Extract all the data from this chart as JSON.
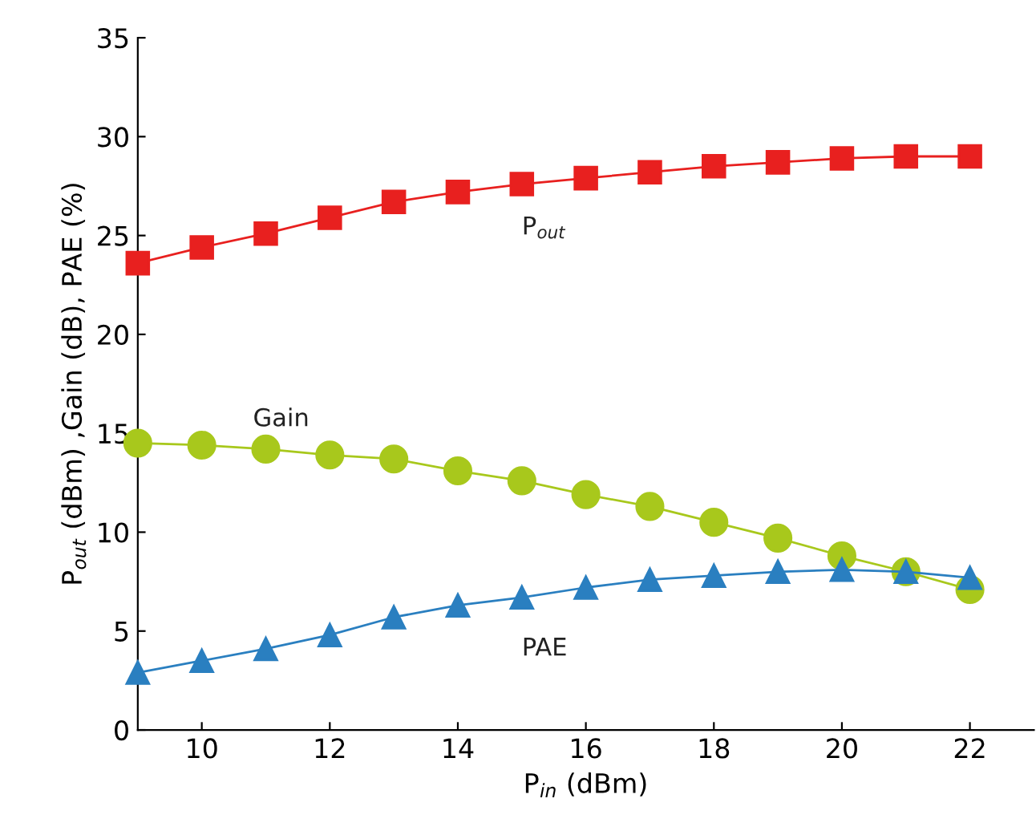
{
  "chart_data": {
    "type": "line",
    "xlabel": "P$_{in}$ (dBm)",
    "ylabel": "P$_{out}$ (dBm) ,Gain (dB), PAE (%)",
    "x": [
      9,
      10,
      11,
      12,
      13,
      14,
      15,
      16,
      17,
      18,
      19,
      20,
      21,
      22
    ],
    "series": [
      {
        "name": "P$_{out}$",
        "color": "#e8201f",
        "marker": "square",
        "values": [
          23.6,
          24.4,
          25.1,
          25.9,
          26.7,
          27.2,
          27.6,
          27.9,
          28.2,
          28.5,
          28.7,
          28.9,
          29.0,
          29.0
        ]
      },
      {
        "name": "Gain",
        "color": "#a8c81c",
        "marker": "circle",
        "values": [
          14.5,
          14.4,
          14.2,
          13.9,
          13.7,
          13.1,
          12.6,
          11.9,
          11.3,
          10.5,
          9.7,
          8.8,
          8.0,
          7.1
        ]
      },
      {
        "name": "PAE",
        "color": "#2a7fc0",
        "marker": "triangle",
        "values": [
          2.9,
          3.5,
          4.1,
          4.8,
          5.7,
          6.3,
          6.7,
          7.2,
          7.6,
          7.8,
          8.0,
          8.1,
          8.0,
          7.7
        ]
      }
    ],
    "xlim": [
      9,
      23
    ],
    "xticks": [
      10,
      12,
      14,
      16,
      18,
      20,
      22
    ],
    "ylim": [
      0,
      35
    ],
    "yticks": [
      0,
      5,
      10,
      15,
      20,
      25,
      30,
      35
    ],
    "grid": false,
    "legend": false,
    "line_style": "solid"
  }
}
